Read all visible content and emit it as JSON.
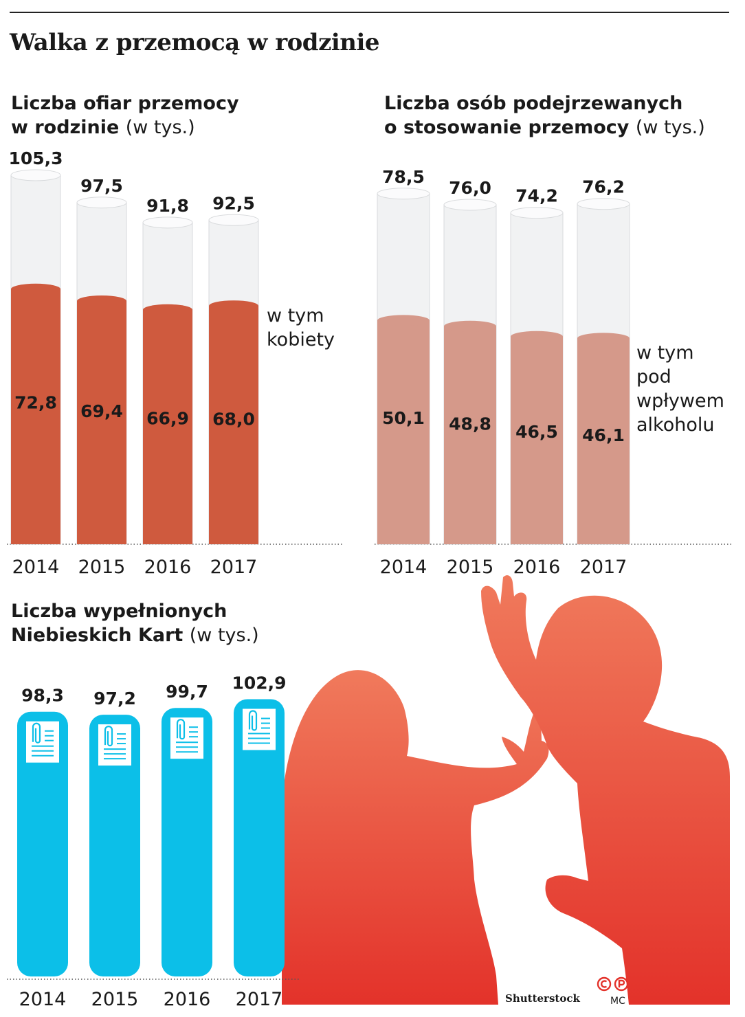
{
  "title": "Walka z przemocą w rodzinie",
  "colors": {
    "victims_fill": "#cf5a3e",
    "suspects_fill": "#d5998a",
    "cards_fill": "#0cbfe8",
    "cap_fill": "#f1f2f3",
    "silhouette_top": "#f07a5c",
    "silhouette_bottom": "#e3322a"
  },
  "chart_data": [
    {
      "type": "bar",
      "title_bold_1": "Liczba ofiar przemocy",
      "title_bold_2": "w rodzinie",
      "title_unit": "(w tys.)",
      "categories": [
        "2014",
        "2015",
        "2016",
        "2017"
      ],
      "series": [
        {
          "values": [
            105.3,
            97.5,
            91.8,
            92.5
          ],
          "labels": [
            "105,3",
            "97,5",
            "91,8",
            "92,5"
          ]
        },
        {
          "name": "w tym kobiety",
          "values": [
            72.8,
            69.4,
            66.9,
            68.0
          ],
          "labels": [
            "72,8",
            "69,4",
            "66,9",
            "68,0"
          ]
        }
      ],
      "note": [
        "w tym",
        "kobiety"
      ]
    },
    {
      "type": "bar",
      "title_bold_1": "Liczba osób podejrzewanych",
      "title_bold_2": "o stosowanie przemocy",
      "title_unit": "(w tys.)",
      "categories": [
        "2014",
        "2015",
        "2016",
        "2017"
      ],
      "series": [
        {
          "values": [
            78.5,
            76.0,
            74.2,
            76.2
          ],
          "labels": [
            "78,5",
            "76,0",
            "74,2",
            "76,2"
          ]
        },
        {
          "name": "w tym pod wpływem alkoholu",
          "values": [
            50.1,
            48.8,
            46.5,
            46.1
          ],
          "labels": [
            "50,1",
            "48,8",
            "46,5",
            "46,1"
          ]
        }
      ],
      "note": [
        "w tym",
        "pod",
        "wpływem",
        "alkoholu"
      ]
    },
    {
      "type": "bar",
      "title_bold_1": "Liczba wypełnionych",
      "title_bold_2": "Niebieskich Kart",
      "title_unit": "(w tys.)",
      "categories": [
        "2014",
        "2015",
        "2016",
        "2017"
      ],
      "series": [
        {
          "values": [
            98.3,
            97.2,
            99.7,
            102.9
          ],
          "labels": [
            "98,3",
            "97,2",
            "99,7",
            "102,9"
          ]
        }
      ],
      "icon": "document-clip-icon"
    }
  ],
  "credit": "Shutterstock",
  "rights_icons": [
    "copyright-icon",
    "phonogram-icon"
  ],
  "author_initials": "MC"
}
